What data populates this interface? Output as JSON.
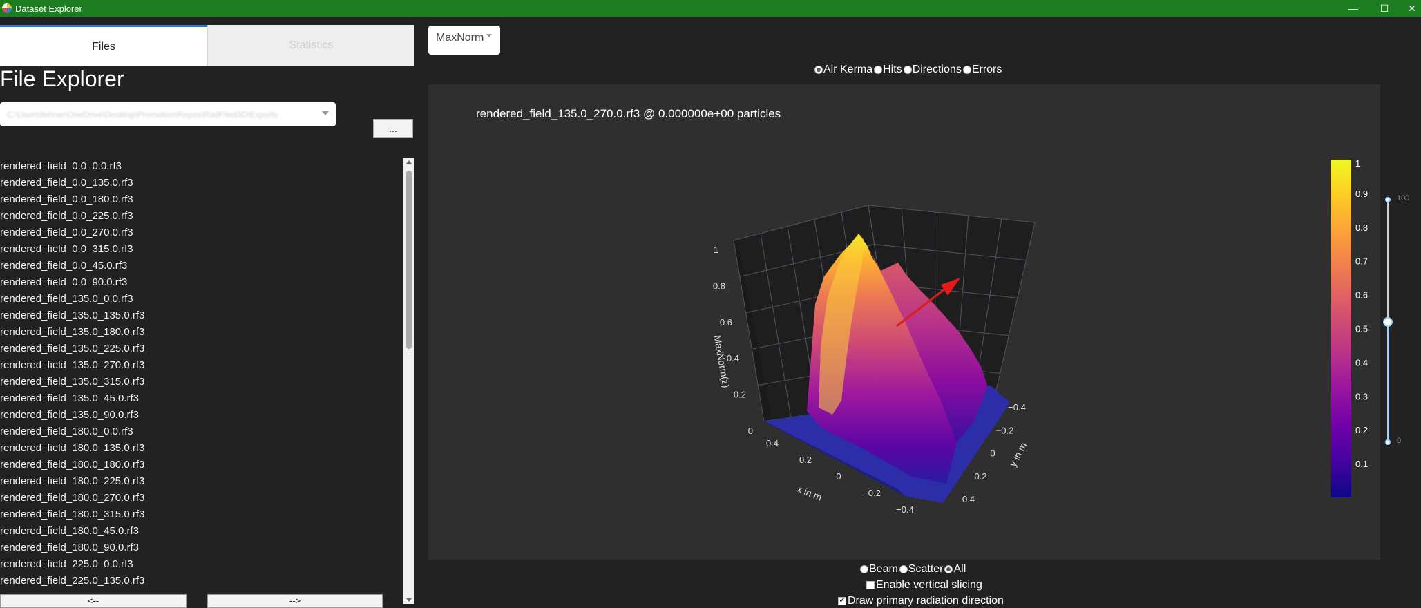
{
  "window": {
    "title": "Dataset Explorer"
  },
  "tabs": {
    "files_label": "Files",
    "statistics_label": "Statistics"
  },
  "file_explorer": {
    "heading": "File Explorer",
    "path_value": "C:\\Users\\fehner\\OneDrive\\Desktop\\Promotion\\Repos\\RadFiled3D\\Exports",
    "browse_label": "...",
    "files": [
      "rendered_field_0.0_0.0.rf3",
      "rendered_field_0.0_135.0.rf3",
      "rendered_field_0.0_180.0.rf3",
      "rendered_field_0.0_225.0.rf3",
      "rendered_field_0.0_270.0.rf3",
      "rendered_field_0.0_315.0.rf3",
      "rendered_field_0.0_45.0.rf3",
      "rendered_field_0.0_90.0.rf3",
      "rendered_field_135.0_0.0.rf3",
      "rendered_field_135.0_135.0.rf3",
      "rendered_field_135.0_180.0.rf3",
      "rendered_field_135.0_225.0.rf3",
      "rendered_field_135.0_270.0.rf3",
      "rendered_field_135.0_315.0.rf3",
      "rendered_field_135.0_45.0.rf3",
      "rendered_field_135.0_90.0.rf3",
      "rendered_field_180.0_0.0.rf3",
      "rendered_field_180.0_135.0.rf3",
      "rendered_field_180.0_180.0.rf3",
      "rendered_field_180.0_225.0.rf3",
      "rendered_field_180.0_270.0.rf3",
      "rendered_field_180.0_315.0.rf3",
      "rendered_field_180.0_45.0.rf3",
      "rendered_field_180.0_90.0.rf3",
      "rendered_field_225.0_0.0.rf3",
      "rendered_field_225.0_135.0.rf3",
      "re"
    ],
    "prev_label": "<--",
    "next_label": "-->"
  },
  "normalization": {
    "selected": "MaxNorm"
  },
  "metric_radio": {
    "options": [
      "Air Kerma",
      "Hits",
      "Directions",
      "Errors"
    ],
    "selected": "Air Kerma"
  },
  "plot": {
    "title": "rendered_field_135.0_270.0.rf3 @ 0.000000e+00 particles",
    "z_axis_label": "MaxNorm(z)",
    "x_axis_label": "x in m",
    "y_axis_label": "y in m",
    "z_ticks": [
      "0",
      "0.2",
      "0.4",
      "0.6",
      "0.8",
      "1"
    ],
    "x_ticks": [
      "0.4",
      "0.2",
      "0",
      "−0.2",
      "−0.4"
    ],
    "y_ticks": [
      "−0.4",
      "−0.2",
      "0",
      "0.2",
      "0.4"
    ],
    "colorbar_ticks": [
      "1",
      "0.9",
      "0.8",
      "0.7",
      "0.6",
      "0.5",
      "0.4",
      "0.3",
      "0.2",
      "0.1"
    ],
    "colorscale": [
      "#0d0887",
      "#46039f",
      "#7201a8",
      "#9c179e",
      "#bd3786",
      "#d8576b",
      "#ed7953",
      "#fb9f3a",
      "#fdca26",
      "#f0f921"
    ],
    "arrow_color": "#e41a1c"
  },
  "slice_slider": {
    "max_label": "100",
    "min_label": "0",
    "value_fraction": 0.5
  },
  "component_radio": {
    "options": [
      "Beam",
      "Scatter",
      "All"
    ],
    "selected": "All"
  },
  "options": {
    "vertical_slicing_label": "Enable vertical slicing",
    "vertical_slicing_checked": false,
    "primary_direction_label": "Draw primary radiation direction",
    "primary_direction_checked": true
  }
}
